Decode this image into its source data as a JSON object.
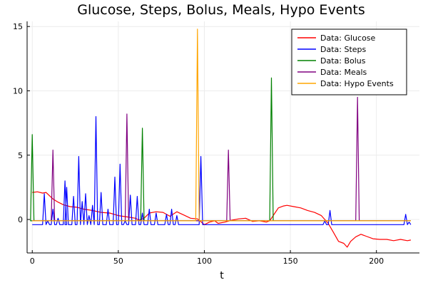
{
  "chart_data": {
    "type": "line",
    "title": "Glucose, Steps, Bolus, Meals, Hypo Events",
    "xlabel": "t",
    "ylabel": "",
    "xlim": [
      -3,
      225
    ],
    "ylim": [
      -2.6,
      15.4
    ],
    "xticks": [
      0,
      50,
      100,
      150,
      200
    ],
    "yticks": [
      0,
      5,
      10,
      15
    ],
    "grid": true,
    "legend_position": "top-right",
    "series": [
      {
        "name": "Data: Glucose",
        "color": "#ff0000",
        "kind": "xy",
        "points": [
          [
            0,
            2.1
          ],
          [
            3,
            2.15
          ],
          [
            6,
            2.05
          ],
          [
            8,
            2.1
          ],
          [
            10,
            1.85
          ],
          [
            12,
            1.6
          ],
          [
            15,
            1.35
          ],
          [
            18,
            1.15
          ],
          [
            22,
            1.0
          ],
          [
            26,
            0.95
          ],
          [
            30,
            0.8
          ],
          [
            35,
            0.7
          ],
          [
            40,
            0.55
          ],
          [
            45,
            0.5
          ],
          [
            50,
            0.3
          ],
          [
            55,
            0.2
          ],
          [
            60,
            0.1
          ],
          [
            62,
            -0.05
          ],
          [
            65,
            0.1
          ],
          [
            68,
            0.5
          ],
          [
            72,
            0.6
          ],
          [
            76,
            0.55
          ],
          [
            80,
            0.25
          ],
          [
            84,
            0.6
          ],
          [
            88,
            0.35
          ],
          [
            92,
            0.1
          ],
          [
            96,
            0.05
          ],
          [
            100,
            -0.4
          ],
          [
            103,
            -0.2
          ],
          [
            106,
            -0.1
          ],
          [
            108,
            -0.3
          ],
          [
            112,
            -0.2
          ],
          [
            116,
            -0.05
          ],
          [
            120,
            0.05
          ],
          [
            124,
            0.1
          ],
          [
            128,
            -0.15
          ],
          [
            132,
            -0.1
          ],
          [
            136,
            -0.2
          ],
          [
            138,
            -0.1
          ],
          [
            141,
            0.5
          ],
          [
            143,
            0.9
          ],
          [
            146,
            1.05
          ],
          [
            148,
            1.1
          ],
          [
            152,
            1.0
          ],
          [
            156,
            0.9
          ],
          [
            160,
            0.7
          ],
          [
            164,
            0.55
          ],
          [
            168,
            0.3
          ],
          [
            172,
            -0.3
          ],
          [
            175,
            -1.0
          ],
          [
            178,
            -1.7
          ],
          [
            181,
            -1.85
          ],
          [
            183,
            -2.15
          ],
          [
            185,
            -1.7
          ],
          [
            188,
            -1.35
          ],
          [
            191,
            -1.15
          ],
          [
            194,
            -1.3
          ],
          [
            198,
            -1.5
          ],
          [
            202,
            -1.55
          ],
          [
            206,
            -1.55
          ],
          [
            210,
            -1.65
          ],
          [
            214,
            -1.55
          ],
          [
            218,
            -1.65
          ],
          [
            220,
            -1.6
          ]
        ]
      },
      {
        "name": "Data: Steps",
        "color": "#0000ff",
        "kind": "spikes",
        "baseline": -0.4,
        "spikes": [
          [
            7,
            2.0
          ],
          [
            9,
            -0.1
          ],
          [
            12,
            0.8
          ],
          [
            15,
            0.1
          ],
          [
            19,
            3.0
          ],
          [
            20,
            2.5
          ],
          [
            24,
            1.8
          ],
          [
            27,
            4.9
          ],
          [
            29,
            1.4
          ],
          [
            31,
            2.0
          ],
          [
            33,
            0.3
          ],
          [
            35,
            1.1
          ],
          [
            37,
            8.0
          ],
          [
            40,
            2.1
          ],
          [
            44,
            0.8
          ],
          [
            48,
            3.3
          ],
          [
            51,
            4.3
          ],
          [
            54,
            -0.1
          ],
          [
            57,
            1.9
          ],
          [
            61,
            1.8
          ],
          [
            64,
            0.5
          ],
          [
            68,
            0.8
          ],
          [
            72,
            0.5
          ],
          [
            78,
            0.4
          ],
          [
            81,
            0.8
          ],
          [
            84,
            0.3
          ],
          [
            98,
            4.9
          ],
          [
            170,
            -0.1
          ],
          [
            173,
            0.7
          ],
          [
            217,
            0.4
          ],
          [
            219,
            -0.2
          ]
        ]
      },
      {
        "name": "Data: Bolus",
        "color": "#008000",
        "kind": "spikes",
        "baseline": -0.1,
        "spikes": [
          [
            0,
            6.6
          ],
          [
            64,
            7.1
          ],
          [
            139,
            11.0
          ]
        ]
      },
      {
        "name": "Data: Meals",
        "color": "#800080",
        "kind": "spikes",
        "baseline": -0.1,
        "spikes": [
          [
            12,
            5.4
          ],
          [
            55,
            8.2
          ],
          [
            114,
            5.4
          ],
          [
            189,
            9.5
          ]
        ]
      },
      {
        "name": "Data: Hypo Events",
        "color": "#ffa500",
        "kind": "spikes",
        "baseline": -0.1,
        "spikes": [
          [
            96,
            14.8
          ]
        ]
      }
    ]
  }
}
